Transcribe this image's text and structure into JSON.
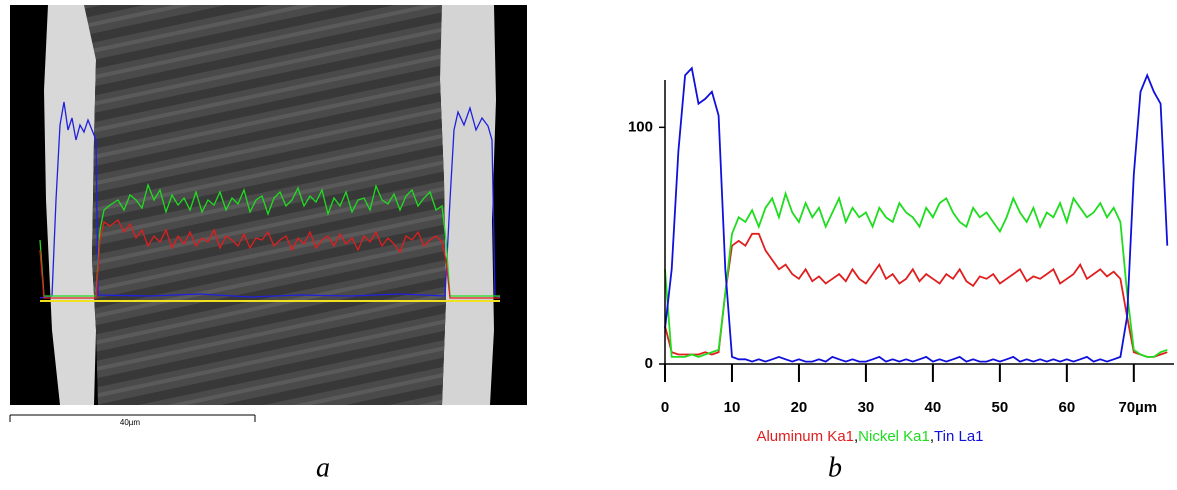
{
  "panels": {
    "a": {
      "label": "a",
      "scale_bar": "40µm"
    },
    "b": {
      "label": "b"
    }
  },
  "chart_data": {
    "type": "line",
    "x": [
      0,
      1,
      2,
      3,
      4,
      5,
      6,
      7,
      8,
      9,
      10,
      11,
      12,
      13,
      14,
      15,
      16,
      17,
      18,
      19,
      20,
      21,
      22,
      23,
      24,
      25,
      26,
      27,
      28,
      29,
      30,
      31,
      32,
      33,
      34,
      35,
      36,
      37,
      38,
      39,
      40,
      41,
      42,
      43,
      44,
      45,
      46,
      47,
      48,
      49,
      50,
      51,
      52,
      53,
      54,
      55,
      56,
      57,
      58,
      59,
      60,
      61,
      62,
      63,
      64,
      65,
      66,
      67,
      68,
      69,
      70,
      71,
      72,
      73,
      74,
      75
    ],
    "series": [
      {
        "name": "Aluminum Ka1",
        "color": "#e01e1e",
        "values": [
          16,
          5,
          4,
          4,
          4,
          4,
          5,
          4,
          5,
          30,
          50,
          52,
          50,
          55,
          55,
          48,
          44,
          40,
          42,
          38,
          36,
          40,
          35,
          37,
          34,
          36,
          38,
          35,
          40,
          36,
          34,
          38,
          42,
          36,
          38,
          34,
          36,
          40,
          35,
          38,
          36,
          34,
          38,
          36,
          40,
          35,
          33,
          37,
          36,
          38,
          34,
          36,
          38,
          40,
          35,
          37,
          36,
          38,
          40,
          34,
          36,
          38,
          42,
          36,
          38,
          40,
          37,
          39,
          36,
          20,
          5,
          4,
          3,
          3,
          4,
          5
        ]
      },
      {
        "name": "Nickel Ka1",
        "color": "#1fdc1f",
        "values": [
          40,
          3,
          3,
          3,
          4,
          3,
          4,
          5,
          6,
          30,
          55,
          62,
          60,
          65,
          58,
          66,
          70,
          62,
          72,
          64,
          60,
          68,
          62,
          66,
          58,
          64,
          70,
          60,
          66,
          62,
          64,
          58,
          66,
          62,
          60,
          68,
          64,
          62,
          58,
          66,
          62,
          68,
          70,
          64,
          60,
          58,
          66,
          62,
          64,
          60,
          56,
          62,
          70,
          64,
          60,
          66,
          58,
          64,
          62,
          68,
          60,
          70,
          66,
          62,
          64,
          68,
          62,
          66,
          60,
          30,
          6,
          4,
          3,
          3,
          5,
          6
        ]
      },
      {
        "name": "Tin La1",
        "color": "#1010dc",
        "values": [
          15,
          40,
          90,
          122,
          125,
          110,
          112,
          115,
          105,
          40,
          3,
          2,
          2,
          1,
          2,
          1,
          2,
          3,
          2,
          1,
          2,
          1,
          1,
          2,
          1,
          3,
          2,
          1,
          2,
          1,
          1,
          2,
          3,
          1,
          2,
          1,
          2,
          1,
          2,
          3,
          1,
          2,
          1,
          2,
          3,
          1,
          2,
          1,
          1,
          2,
          1,
          2,
          3,
          1,
          2,
          1,
          2,
          1,
          2,
          1,
          2,
          1,
          2,
          3,
          1,
          2,
          1,
          2,
          3,
          20,
          80,
          115,
          122,
          115,
          110,
          50
        ]
      }
    ],
    "legend_separator": ",",
    "xlim": [
      0,
      76
    ],
    "xticks": [
      0,
      10,
      20,
      30,
      40,
      50,
      60,
      {
        "value": 70,
        "label": "70µm"
      }
    ],
    "ylim": [
      0,
      120
    ],
    "yticks": [
      0,
      100
    ]
  }
}
